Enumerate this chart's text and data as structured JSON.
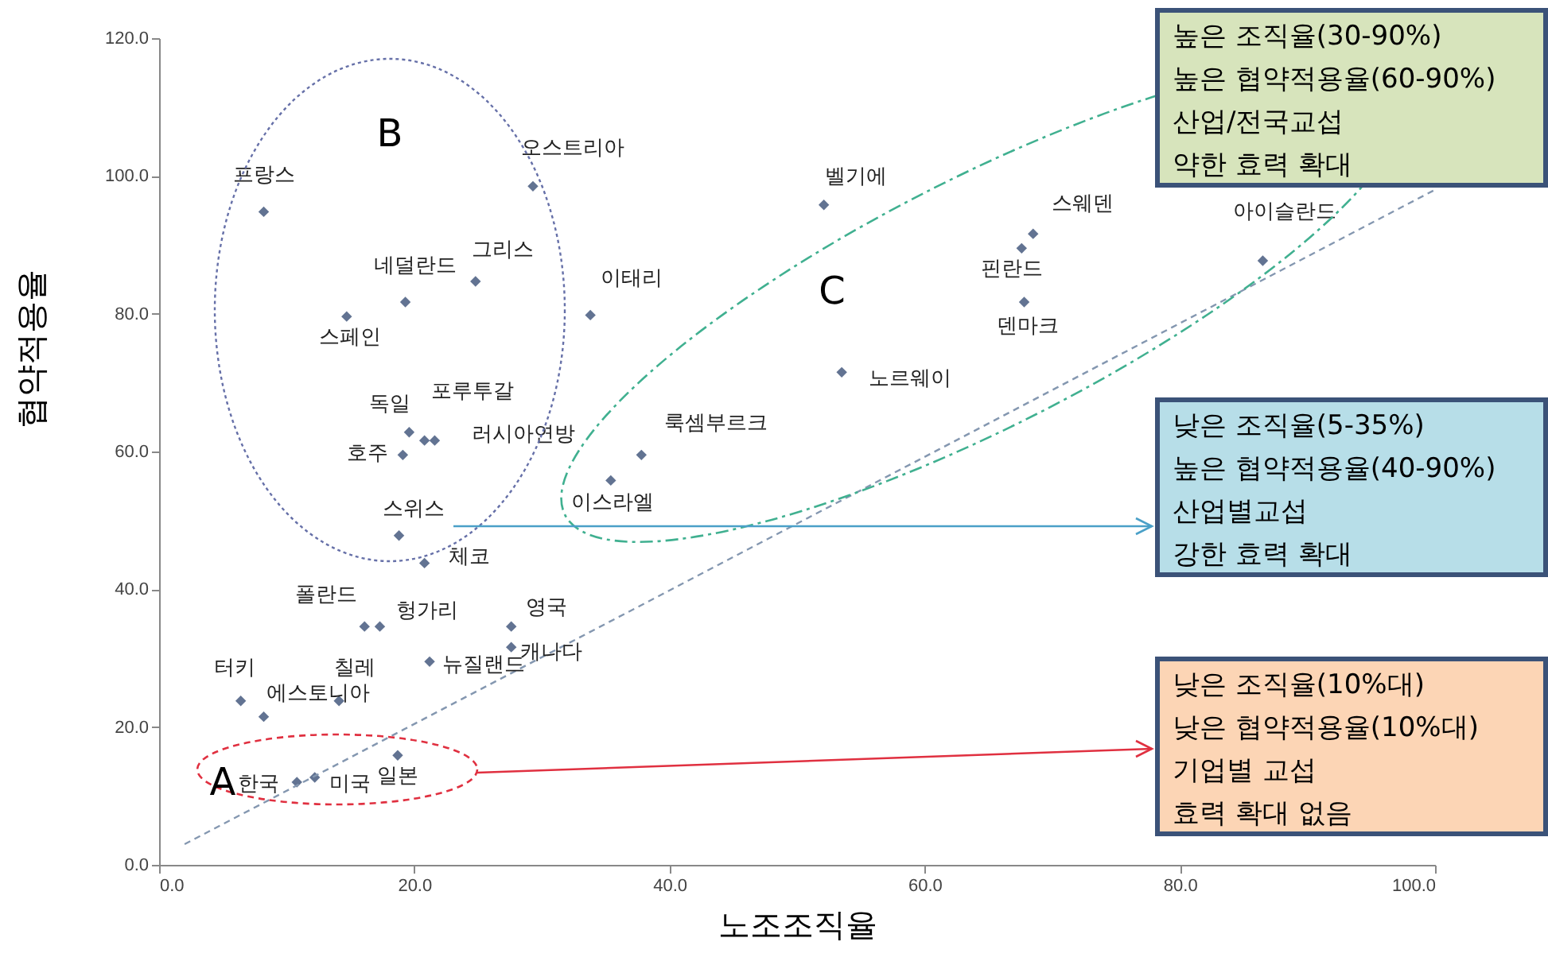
{
  "chart_data": {
    "type": "scatter",
    "xlabel": "노조조직율",
    "ylabel": "협약적용율",
    "xlim": [
      0,
      100
    ],
    "ylim": [
      0,
      120
    ],
    "xticks": [
      {
        "value": 0,
        "label": "0.0"
      },
      {
        "value": 20,
        "label": "20.0"
      },
      {
        "value": 40,
        "label": "40.0"
      },
      {
        "value": 60,
        "label": "60.0"
      },
      {
        "value": 80,
        "label": "80.0"
      },
      {
        "value": 100,
        "label": "100.0"
      }
    ],
    "yticks": [
      {
        "value": 0,
        "label": "0.0"
      },
      {
        "value": 20,
        "label": "20.0"
      },
      {
        "value": 40,
        "label": "40.0"
      },
      {
        "value": 60,
        "label": "60.0"
      },
      {
        "value": 80,
        "label": "80.0"
      },
      {
        "value": 100,
        "label": "100.0"
      },
      {
        "value": 120,
        "label": "120.0"
      }
    ],
    "grid": false,
    "marker": "diamond",
    "series": [
      {
        "color": "#1f3864",
        "x": [
          8.2,
          29.3,
          24.8,
          19.3,
          14.7,
          33.8,
          19.6,
          20.8,
          21.6,
          19.1,
          37.8,
          35.4,
          52.1,
          53.5,
          68.5,
          67.6,
          67.8,
          86.5,
          18.8,
          20.8,
          16.1,
          17.3,
          27.6,
          27.6,
          21.2,
          14.1,
          6.4,
          8.2,
          18.7,
          12.2,
          10.8
        ],
        "values": [
          94.8,
          98.5,
          84.7,
          81.7,
          79.6,
          79.8,
          62.8,
          61.6,
          61.6,
          59.5,
          59.5,
          55.8,
          95.8,
          71.5,
          91.6,
          89.5,
          81.7,
          87.7,
          47.8,
          43.8,
          34.6,
          34.6,
          34.6,
          31.6,
          29.5,
          23.8,
          23.8,
          21.5,
          15.9,
          12.7,
          12.0
        ]
      },
      {
        "type": "line",
        "color": "#8497b0",
        "line_style": "dashed",
        "marker": "none",
        "x": [
          2,
          100
        ],
        "values": [
          3,
          98
        ]
      }
    ],
    "annotations": [
      {
        "text": "프랑스",
        "x": 8.2,
        "y": 94.8
      },
      {
        "text": "오스트리아",
        "x": 29.3,
        "y": 98.5
      },
      {
        "text": "그리스",
        "x": 24.8,
        "y": 84.7
      },
      {
        "text": "네덜란드",
        "x": 19.3,
        "y": 81.7
      },
      {
        "text": "스페인",
        "x": 14.7,
        "y": 79.6
      },
      {
        "text": "이태리",
        "x": 33.8,
        "y": 79.8
      },
      {
        "text": "독일",
        "x": 19.6,
        "y": 62.8
      },
      {
        "text": "포루투갈",
        "x": 20.8,
        "y": 61.6
      },
      {
        "text": "러시아연방",
        "x": 21.6,
        "y": 61.6
      },
      {
        "text": "호주",
        "x": 19.1,
        "y": 59.5
      },
      {
        "text": "룩셈부르크",
        "x": 37.8,
        "y": 59.5
      },
      {
        "text": "이스라엘",
        "x": 35.4,
        "y": 55.8
      },
      {
        "text": "벨기에",
        "x": 52.1,
        "y": 95.8
      },
      {
        "text": "노르웨이",
        "x": 53.5,
        "y": 71.5
      },
      {
        "text": "스웨덴",
        "x": 68.5,
        "y": 91.6
      },
      {
        "text": "핀란드",
        "x": 67.6,
        "y": 89.5
      },
      {
        "text": "덴마크",
        "x": 67.8,
        "y": 81.7
      },
      {
        "text": "아이슬란드",
        "x": 86.5,
        "y": 87.7
      },
      {
        "text": "스위스",
        "x": 18.8,
        "y": 47.8
      },
      {
        "text": "체코",
        "x": 20.8,
        "y": 43.8
      },
      {
        "text": "폴란드",
        "x": 16.1,
        "y": 34.6
      },
      {
        "text": "헝가리",
        "x": 17.3,
        "y": 34.6
      },
      {
        "text": "영국",
        "x": 27.6,
        "y": 34.6
      },
      {
        "text": "캐나다",
        "x": 27.6,
        "y": 31.6
      },
      {
        "text": "뉴질랜드",
        "x": 21.2,
        "y": 29.5
      },
      {
        "text": "칠레",
        "x": 14.1,
        "y": 23.8
      },
      {
        "text": "터키",
        "x": 6.4,
        "y": 23.8
      },
      {
        "text": "에스토니아",
        "x": 8.2,
        "y": 21.5
      },
      {
        "text": "일본",
        "x": 18.7,
        "y": 15.9
      },
      {
        "text": "미국",
        "x": 12.2,
        "y": 12.7
      },
      {
        "text": "한국",
        "x": 10.8,
        "y": 12.0
      },
      "A",
      "B",
      "C",
      "높은 조직율(30-90%)\n높은 협약적용율(60-90%)\n산업/전국교섭\n약한 효력 확대",
      "낮은 조직율(5-35%)\n높은 협약적용율(40-90%)\n산업별교섭\n강한 효력 확대",
      "낮은 조직율(10%대)\n낮은 협약적용율(10%대)\n기업별 교섭\n효력 확대 없음"
    ]
  }
}
